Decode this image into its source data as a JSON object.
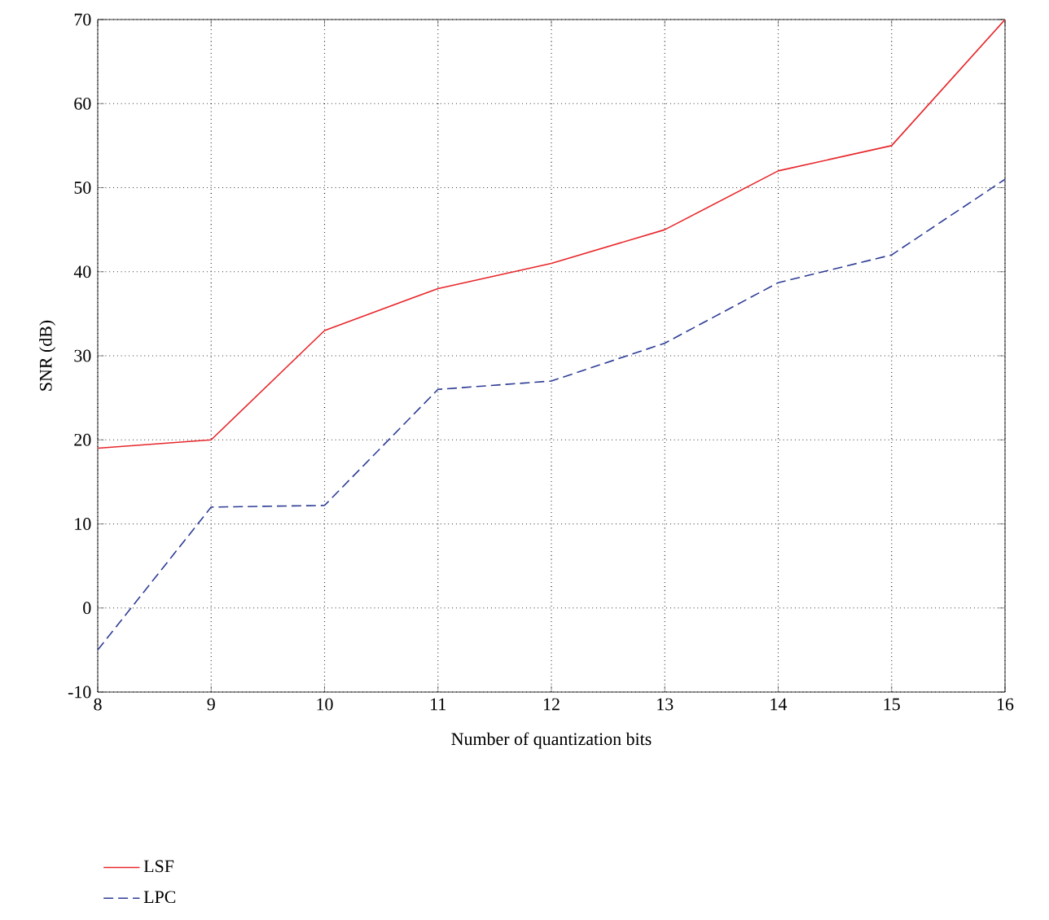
{
  "chart_data": {
    "type": "line",
    "xlabel": "Number of quantization bits",
    "ylabel": "SNR (dB)",
    "x": [
      8,
      9,
      10,
      11,
      12,
      13,
      14,
      15,
      16
    ],
    "xlim": [
      8,
      16
    ],
    "ylim": [
      -10,
      70
    ],
    "xticks": [
      8,
      9,
      10,
      11,
      12,
      13,
      14,
      15,
      16
    ],
    "yticks": [
      -10,
      0,
      10,
      20,
      30,
      40,
      50,
      60,
      70
    ],
    "grid": true,
    "legend": "bottom left",
    "marker": "none",
    "series": [
      {
        "name": "LSF",
        "color": "#e8262a",
        "line_style": "solid",
        "values": [
          19,
          20,
          33,
          38,
          41,
          45,
          52,
          55,
          70
        ]
      },
      {
        "name": "LPC",
        "color": "#2e3d96",
        "line_style": "dashed",
        "values": [
          -5,
          12,
          12.2,
          26,
          27,
          31.5,
          38.7,
          42,
          51
        ]
      }
    ]
  }
}
